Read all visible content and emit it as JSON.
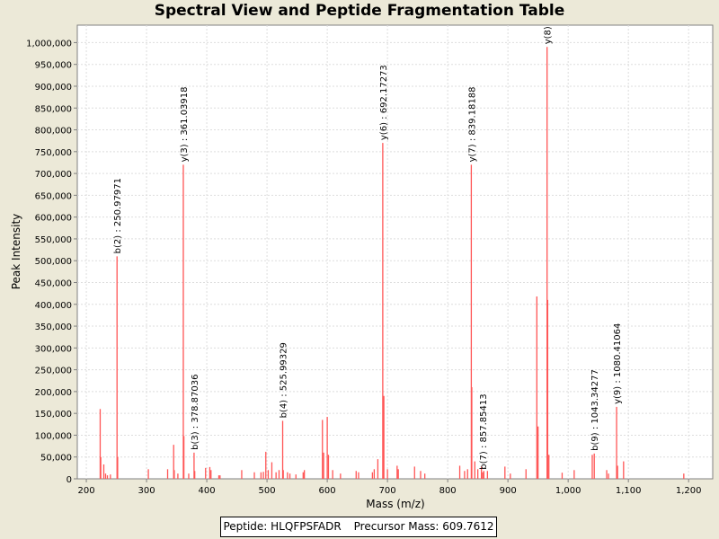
{
  "chart_data": {
    "type": "bar",
    "title": "Spectral View and Peptide Fragmentation Table",
    "xlabel": "Mass (m/z)",
    "ylabel": "Peak Intensity",
    "xlim": [
      185,
      1240
    ],
    "ylim": [
      0,
      1040000
    ],
    "x_ticks": [
      {
        "value": 200,
        "label": "200"
      },
      {
        "value": 300,
        "label": "300"
      },
      {
        "value": 400,
        "label": "400"
      },
      {
        "value": 500,
        "label": "500"
      },
      {
        "value": 600,
        "label": "600"
      },
      {
        "value": 700,
        "label": "700"
      },
      {
        "value": 800,
        "label": "800"
      },
      {
        "value": 900,
        "label": "900"
      },
      {
        "value": 1000,
        "label": "1,000"
      },
      {
        "value": 1100,
        "label": "1,100"
      },
      {
        "value": 1200,
        "label": "1,200"
      }
    ],
    "y_ticks": [
      {
        "value": 0,
        "label": "0"
      },
      {
        "value": 50000,
        "label": "50,000"
      },
      {
        "value": 100000,
        "label": "100,000"
      },
      {
        "value": 150000,
        "label": "150,000"
      },
      {
        "value": 200000,
        "label": "200,000"
      },
      {
        "value": 250000,
        "label": "250,000"
      },
      {
        "value": 300000,
        "label": "300,000"
      },
      {
        "value": 350000,
        "label": "350,000"
      },
      {
        "value": 400000,
        "label": "400,000"
      },
      {
        "value": 450000,
        "label": "450,000"
      },
      {
        "value": 500000,
        "label": "500,000"
      },
      {
        "value": 550000,
        "label": "550,000"
      },
      {
        "value": 600000,
        "label": "600,000"
      },
      {
        "value": 650000,
        "label": "650,000"
      },
      {
        "value": 700000,
        "label": "700,000"
      },
      {
        "value": 750000,
        "label": "750,000"
      },
      {
        "value": 800000,
        "label": "800,000"
      },
      {
        "value": 850000,
        "label": "850,000"
      },
      {
        "value": 900000,
        "label": "900,000"
      },
      {
        "value": 950000,
        "label": "950,000"
      },
      {
        "value": 1000000,
        "label": "1,000,000"
      }
    ],
    "grid": true,
    "peak_color": "#FF5555",
    "peaks": [
      [
        223,
        160000
      ],
      [
        224,
        50000
      ],
      [
        229,
        33000
      ],
      [
        232,
        12000
      ],
      [
        235,
        8000
      ],
      [
        240,
        10000
      ],
      [
        250.97971,
        510000
      ],
      [
        252,
        50000
      ],
      [
        303,
        22000
      ],
      [
        335,
        22000
      ],
      [
        345,
        78000
      ],
      [
        346,
        20000
      ],
      [
        352,
        12000
      ],
      [
        361.03918,
        720000
      ],
      [
        362,
        98000
      ],
      [
        370,
        12000
      ],
      [
        378.87036,
        60000
      ],
      [
        380,
        18000
      ],
      [
        398,
        25000
      ],
      [
        405,
        27000
      ],
      [
        407,
        20000
      ],
      [
        420,
        8000
      ],
      [
        422,
        8000
      ],
      [
        458,
        20000
      ],
      [
        479,
        15000
      ],
      [
        490,
        15000
      ],
      [
        494,
        16000
      ],
      [
        498,
        62000
      ],
      [
        502,
        20000
      ],
      [
        508,
        38000
      ],
      [
        515,
        15000
      ],
      [
        520,
        20000
      ],
      [
        525.99329,
        133000
      ],
      [
        527,
        20000
      ],
      [
        534,
        15000
      ],
      [
        538,
        12000
      ],
      [
        548,
        10000
      ],
      [
        560,
        15000
      ],
      [
        562,
        20000
      ],
      [
        592,
        135000
      ],
      [
        594,
        60000
      ],
      [
        600,
        142000
      ],
      [
        602,
        55000
      ],
      [
        609,
        20000
      ],
      [
        622,
        12000
      ],
      [
        648,
        18000
      ],
      [
        652,
        15000
      ],
      [
        675,
        15000
      ],
      [
        678,
        22000
      ],
      [
        684,
        45000
      ],
      [
        692.17273,
        770000
      ],
      [
        694,
        190000
      ],
      [
        700,
        22000
      ],
      [
        716,
        30000
      ],
      [
        718,
        22000
      ],
      [
        745,
        28000
      ],
      [
        755,
        18000
      ],
      [
        762,
        12000
      ],
      [
        820,
        30000
      ],
      [
        828,
        18000
      ],
      [
        833,
        22000
      ],
      [
        839.18188,
        720000
      ],
      [
        840,
        210000
      ],
      [
        845,
        40000
      ],
      [
        850,
        22000
      ],
      [
        856,
        28000
      ],
      [
        857.85413,
        15000
      ],
      [
        860,
        18000
      ],
      [
        866,
        18000
      ],
      [
        895,
        28000
      ],
      [
        904,
        12000
      ],
      [
        930,
        22000
      ],
      [
        948,
        418000
      ],
      [
        950,
        120000
      ],
      [
        965,
        990000
      ],
      [
        966,
        410000
      ],
      [
        968,
        55000
      ],
      [
        990,
        14000
      ],
      [
        1010,
        20000
      ],
      [
        1040,
        55000
      ],
      [
        1043.34277,
        58000
      ],
      [
        1064,
        20000
      ],
      [
        1067,
        12000
      ],
      [
        1080.41064,
        165000
      ],
      [
        1082,
        30000
      ],
      [
        1092,
        40000
      ],
      [
        1192,
        12000
      ]
    ],
    "annotations": [
      {
        "x": 250.97971,
        "y": 510000,
        "label": "b(2) : 250.97971"
      },
      {
        "x": 361.03918,
        "y": 720000,
        "label": "y(3) : 361.03918"
      },
      {
        "x": 378.87036,
        "y": 60000,
        "label": "b(3) : 378.87036"
      },
      {
        "x": 525.99329,
        "y": 133000,
        "label": "b(4) : 525.99329"
      },
      {
        "x": 692.17273,
        "y": 770000,
        "label": "y(6) : 692.17273"
      },
      {
        "x": 839.18188,
        "y": 720000,
        "label": "y(7) : 839.18188"
      },
      {
        "x": 857.85413,
        "y": 15000,
        "label": "b(7) : 857.85413"
      },
      {
        "x": 965,
        "y": 990000,
        "label": "y(8)"
      },
      {
        "x": 1043.34277,
        "y": 58000,
        "label": "b(9) : 1043.34277"
      },
      {
        "x": 1080.41064,
        "y": 165000,
        "label": "y(9) : 1080.41064"
      }
    ]
  },
  "info": {
    "peptide_label": "Peptide: HLQFPSFADR",
    "precursor_label": "Precursor Mass: 609.7612"
  }
}
